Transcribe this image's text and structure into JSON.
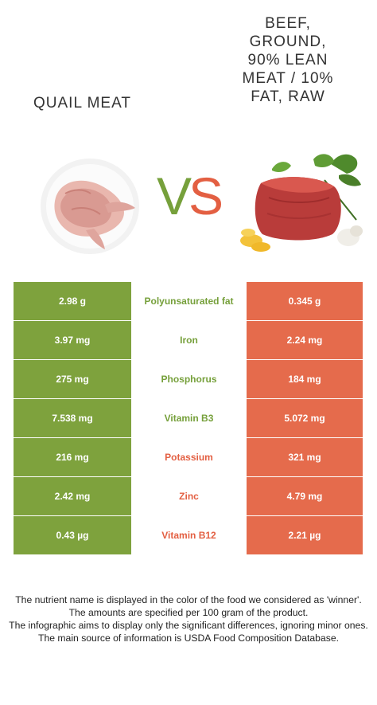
{
  "left_food": {
    "name": "QUAIL MEAT",
    "color": "#7ea23d"
  },
  "right_food": {
    "name_lines": [
      "BEEF,",
      "GROUND,",
      "90% LEAN",
      "MEAT / 10%",
      "FAT, RAW"
    ],
    "color": "#e56b4c"
  },
  "vs": {
    "v": "V",
    "s": "S"
  },
  "rows": [
    {
      "left": "2.98 g",
      "nutrient": "Polyunsaturated fat",
      "right": "0.345 g",
      "winner": "left"
    },
    {
      "left": "3.97 mg",
      "nutrient": "Iron",
      "right": "2.24 mg",
      "winner": "left"
    },
    {
      "left": "275 mg",
      "nutrient": "Phosphorus",
      "right": "184 mg",
      "winner": "left"
    },
    {
      "left": "7.538 mg",
      "nutrient": "Vitamin B3",
      "right": "5.072 mg",
      "winner": "left"
    },
    {
      "left": "216 mg",
      "nutrient": "Potassium",
      "right": "321 mg",
      "winner": "right"
    },
    {
      "left": "2.42 mg",
      "nutrient": "Zinc",
      "right": "4.79 mg",
      "winner": "right"
    },
    {
      "left": "0.43 µg",
      "nutrient": "Vitamin B12",
      "right": "2.21 µg",
      "winner": "right"
    }
  ],
  "footer": [
    "The nutrient name is displayed in the color of the food we considered as 'winner'.",
    "The amounts are specified per 100 gram of the product.",
    "The infographic aims to display only the significant differences, ignoring minor ones.",
    "The main source of information is USDA Food Composition Database."
  ]
}
